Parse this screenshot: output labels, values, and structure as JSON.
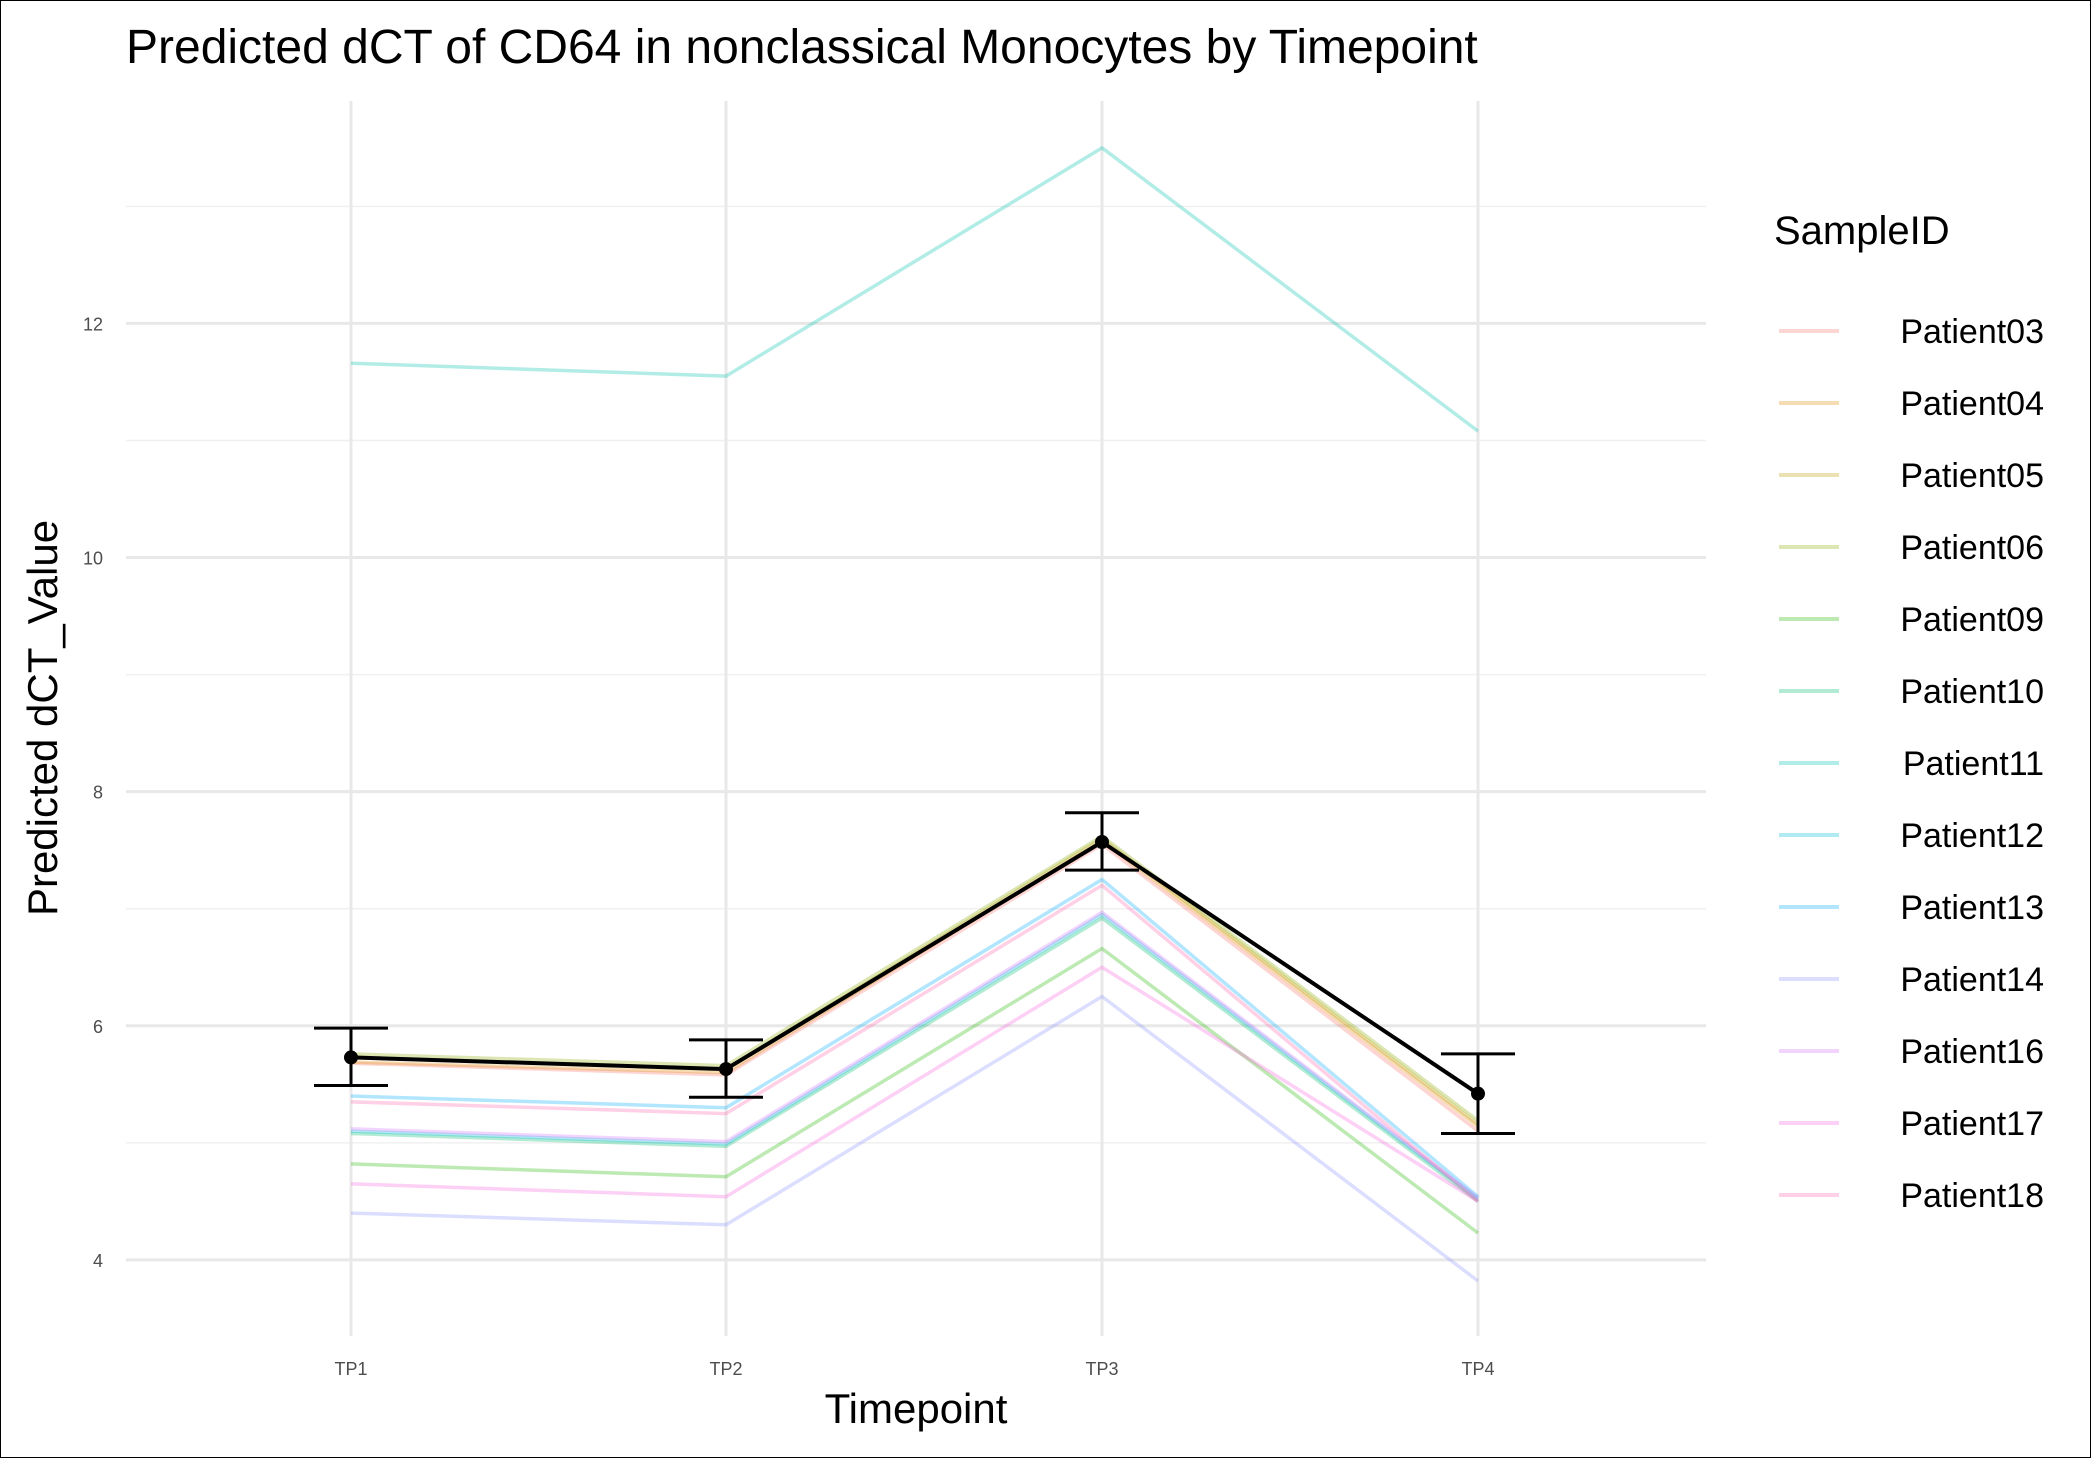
{
  "chart_data": {
    "type": "line",
    "title": "Predicted dCT of  CD64 in  nonclassical  Monocytes by Timepoint",
    "xlabel": "Timepoint",
    "ylabel": "Predicted dCT_Value",
    "categories": [
      "TP1",
      "TP2",
      "TP3",
      "TP4"
    ],
    "yticks": [
      4,
      6,
      8,
      10,
      12
    ],
    "ylim": [
      3.35,
      13.9
    ],
    "grid": true,
    "legend": {
      "title": "SampleID",
      "position": "right"
    },
    "series": [
      {
        "name": "Patient03",
        "color": "#F8766D",
        "values": [
          5.68,
          5.58,
          7.55,
          5.1
        ]
      },
      {
        "name": "Patient04",
        "color": "#E18A00",
        "values": [
          5.69,
          5.6,
          7.58,
          5.14
        ]
      },
      {
        "name": "Patient05",
        "color": "#BE9C00",
        "values": [
          5.73,
          5.63,
          7.6,
          5.16
        ]
      },
      {
        "name": "Patient06",
        "color": "#8CAB00",
        "values": [
          5.76,
          5.66,
          7.62,
          5.19
        ]
      },
      {
        "name": "Patient09",
        "color": "#24B700",
        "values": [
          4.82,
          4.71,
          6.66,
          4.23
        ]
      },
      {
        "name": "Patient10",
        "color": "#00BE70",
        "values": [
          5.08,
          4.97,
          6.92,
          4.5
        ]
      },
      {
        "name": "Patient11",
        "color": "#00C1AB",
        "values": [
          11.66,
          11.55,
          13.5,
          11.08
        ]
      },
      {
        "name": "Patient12",
        "color": "#00BBDA",
        "values": [
          5.1,
          4.99,
          6.95,
          4.52
        ]
      },
      {
        "name": "Patient13",
        "color": "#00ACFC",
        "values": [
          5.4,
          5.3,
          7.25,
          4.54
        ]
      },
      {
        "name": "Patient14",
        "color": "#8B93FF",
        "values": [
          4.4,
          4.3,
          6.25,
          3.82
        ]
      },
      {
        "name": "Patient16",
        "color": "#D575FE",
        "values": [
          5.12,
          5.01,
          6.97,
          4.53
        ]
      },
      {
        "name": "Patient17",
        "color": "#F962DD",
        "values": [
          4.65,
          4.54,
          6.5,
          4.5
        ]
      },
      {
        "name": "Patient18",
        "color": "#FF65AC",
        "values": [
          5.35,
          5.25,
          7.2,
          4.5
        ]
      }
    ],
    "series_opacity": 0.3,
    "mean": {
      "color": "#000000",
      "values": [
        5.73,
        5.63,
        7.57,
        5.42
      ],
      "lower": [
        5.49,
        5.39,
        7.33,
        5.08
      ],
      "upper": [
        5.98,
        5.88,
        7.82,
        5.76
      ]
    }
  }
}
